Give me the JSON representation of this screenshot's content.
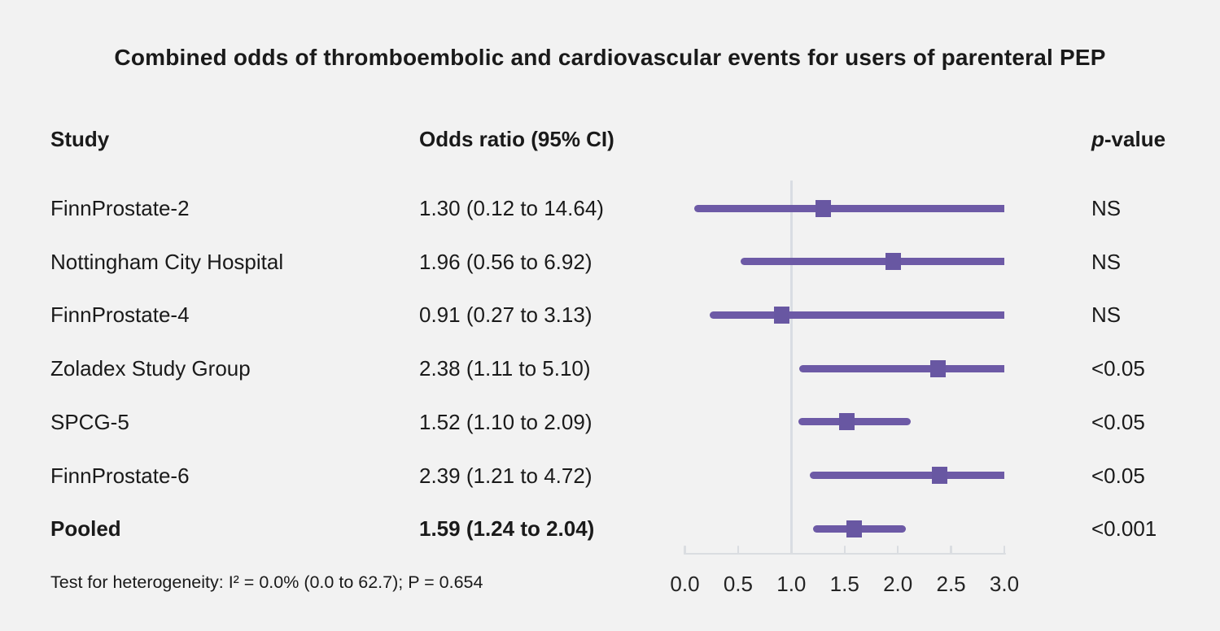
{
  "title": "Combined odds of thromboembolic and cardiovascular events for users of parenteral PEP",
  "columns": {
    "study": "Study",
    "odds_ratio": "Odds ratio (95% CI)",
    "p_prefix": "p",
    "p_suffix": "-value"
  },
  "footer": "Test for heterogeneity: I² = 0.0% (0.0 to 62.7); P = 0.654",
  "colors": {
    "background": "#f2f2f2",
    "text": "#1a1a1a",
    "ci_line": "#6d5aa6",
    "marker": "#6857a2",
    "reference_line": "#d9dde3",
    "axis": "#dadde1"
  },
  "chart_data": {
    "type": "forest",
    "x_axis_label_ticks": [
      "0.0",
      "0.5",
      "1.0",
      "1.5",
      "2.0",
      "2.5",
      "3.0"
    ],
    "x_tick_values": [
      0.0,
      0.5,
      1.0,
      1.5,
      2.0,
      2.5,
      3.0
    ],
    "xlim": [
      0.0,
      3.0
    ],
    "reference_line": 1.0,
    "studies": [
      {
        "name": "FinnProstate-2",
        "or": 1.3,
        "ci_low": 0.12,
        "ci_high": 14.64,
        "or_label": "1.30 (0.12 to 14.64)",
        "p": "NS",
        "bold": false
      },
      {
        "name": "Nottingham City Hospital",
        "or": 1.96,
        "ci_low": 0.56,
        "ci_high": 6.92,
        "or_label": "1.96 (0.56 to 6.92)",
        "p": "NS",
        "bold": false
      },
      {
        "name": "FinnProstate-4",
        "or": 0.91,
        "ci_low": 0.27,
        "ci_high": 3.13,
        "or_label": "0.91 (0.27 to 3.13)",
        "p": "NS",
        "bold": false
      },
      {
        "name": "Zoladex Study Group",
        "or": 2.38,
        "ci_low": 1.11,
        "ci_high": 5.1,
        "or_label": "2.38 (1.11 to 5.10)",
        "p": "<0.05",
        "bold": false
      },
      {
        "name": "SPCG-5",
        "or": 1.52,
        "ci_low": 1.1,
        "ci_high": 2.09,
        "or_label": "1.52 (1.10 to 2.09)",
        "p": "<0.05",
        "bold": false
      },
      {
        "name": "FinnProstate-6",
        "or": 2.39,
        "ci_low": 1.21,
        "ci_high": 4.72,
        "or_label": "2.39 (1.21 to 4.72)",
        "p": "<0.05",
        "bold": false
      },
      {
        "name": "Pooled",
        "or": 1.59,
        "ci_low": 1.24,
        "ci_high": 2.04,
        "or_label": "1.59 (1.24 to 2.04)",
        "p": "<0.001",
        "bold": true
      }
    ]
  }
}
